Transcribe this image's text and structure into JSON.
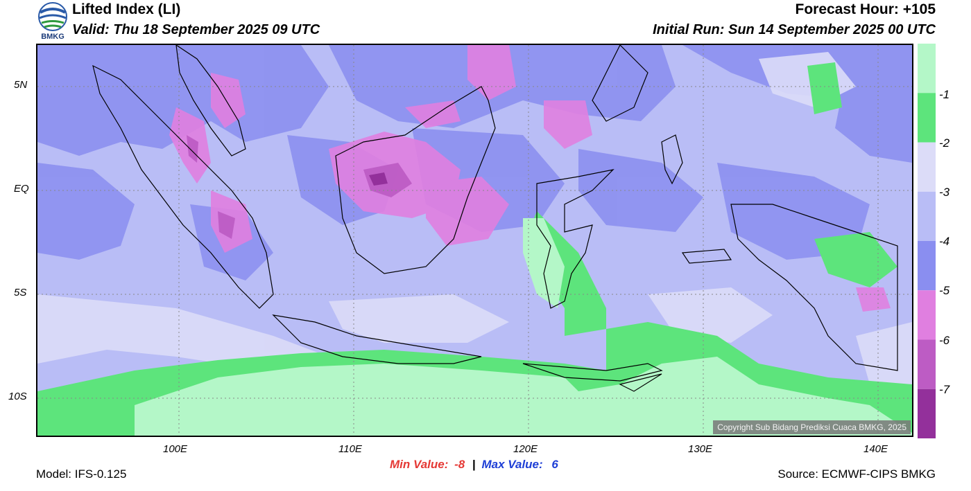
{
  "header": {
    "title": "Lifted Index (LI)",
    "valid": "Valid: Thu 18 September 2025 09 UTC",
    "forecast_hour": "Forecast Hour: +105",
    "initial_run": "Initial Run: Sun 14 September 2025 00 UTC",
    "logo_text": "BMKG"
  },
  "map": {
    "lat_labels": [
      "5N",
      "EQ",
      "5S",
      "10S"
    ],
    "lon_labels": [
      "100E",
      "110E",
      "120E",
      "130E",
      "140E"
    ],
    "copyright": "Copyright Sub Bidang Prediksi Cuaca BMKG, 2025"
  },
  "legend": {
    "labels": [
      "-1",
      "-2",
      "-3",
      "-4",
      "-5",
      "-6",
      "-7"
    ],
    "colors": [
      "#b4f7c8",
      "#5de47c",
      "#dcdcf8",
      "#b9bdf6",
      "#8a8ef0",
      "#e07fe0",
      "#bd5cc4",
      "#93309b"
    ]
  },
  "footer": {
    "model": "Model: IFS-0.125",
    "min_label": "Min Value:",
    "min_value": "-8",
    "separator": "|",
    "max_label": "Max Value:",
    "max_value": "6",
    "source": "Source: ECMWF-CIPS BMKG"
  }
}
